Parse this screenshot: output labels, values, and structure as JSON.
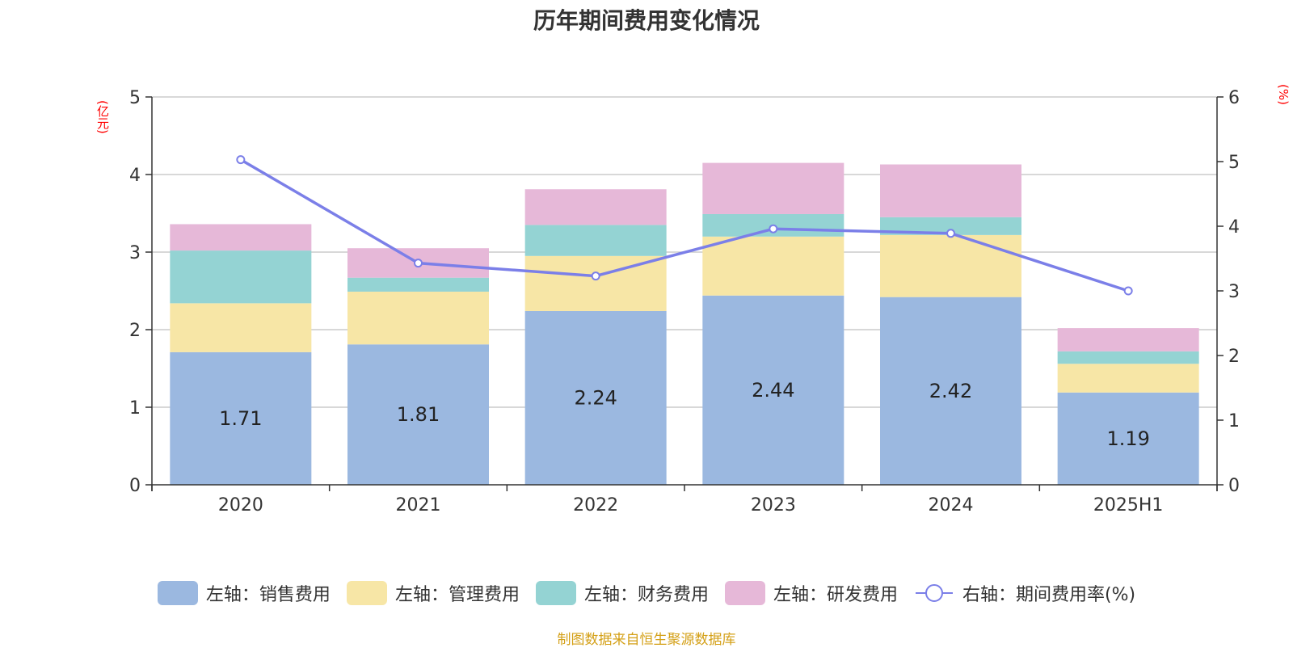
{
  "title": "历年期间费用变化情况",
  "source": "制图数据来自恒生聚源数据库",
  "chart_data": {
    "type": "bar",
    "stacked": true,
    "categories": [
      "2020",
      "2021",
      "2022",
      "2023",
      "2024",
      "2025H1"
    ],
    "left_axis": {
      "unit": "(亿元)",
      "ylim": [
        0,
        5
      ],
      "ticks": [
        "0",
        "1",
        "2",
        "3",
        "4",
        "5"
      ]
    },
    "right_axis": {
      "unit": "(%)",
      "ylim": [
        0,
        6
      ],
      "ticks": [
        "0",
        "1",
        "2",
        "3",
        "4",
        "5",
        "6"
      ]
    },
    "grid": true,
    "legend_position": "bottom",
    "series": [
      {
        "name": "左轴：销售费用",
        "color": "#9bb8e0",
        "axis": "left",
        "values": [
          1.71,
          1.81,
          2.24,
          2.44,
          2.42,
          1.19
        ],
        "labels": [
          "1.71",
          "1.81",
          "2.24",
          "2.44",
          "2.42",
          "1.19"
        ]
      },
      {
        "name": "左轴：管理费用",
        "color": "#f7e6a6",
        "axis": "left",
        "values": [
          0.63,
          0.68,
          0.71,
          0.76,
          0.8,
          0.37
        ]
      },
      {
        "name": "左轴：财务费用",
        "color": "#94d3d3",
        "axis": "left",
        "values": [
          0.68,
          0.18,
          0.4,
          0.29,
          0.23,
          0.16
        ]
      },
      {
        "name": "左轴：研发费用",
        "color": "#e6b8d8",
        "axis": "left",
        "values": [
          0.34,
          0.38,
          0.46,
          0.66,
          0.68,
          0.3
        ]
      },
      {
        "name": "右轴：期间费用率(%)",
        "color": "#7b7fe8",
        "axis": "right",
        "type": "line",
        "values": [
          5.03,
          3.43,
          3.23,
          3.96,
          3.89,
          3.0
        ]
      }
    ]
  }
}
